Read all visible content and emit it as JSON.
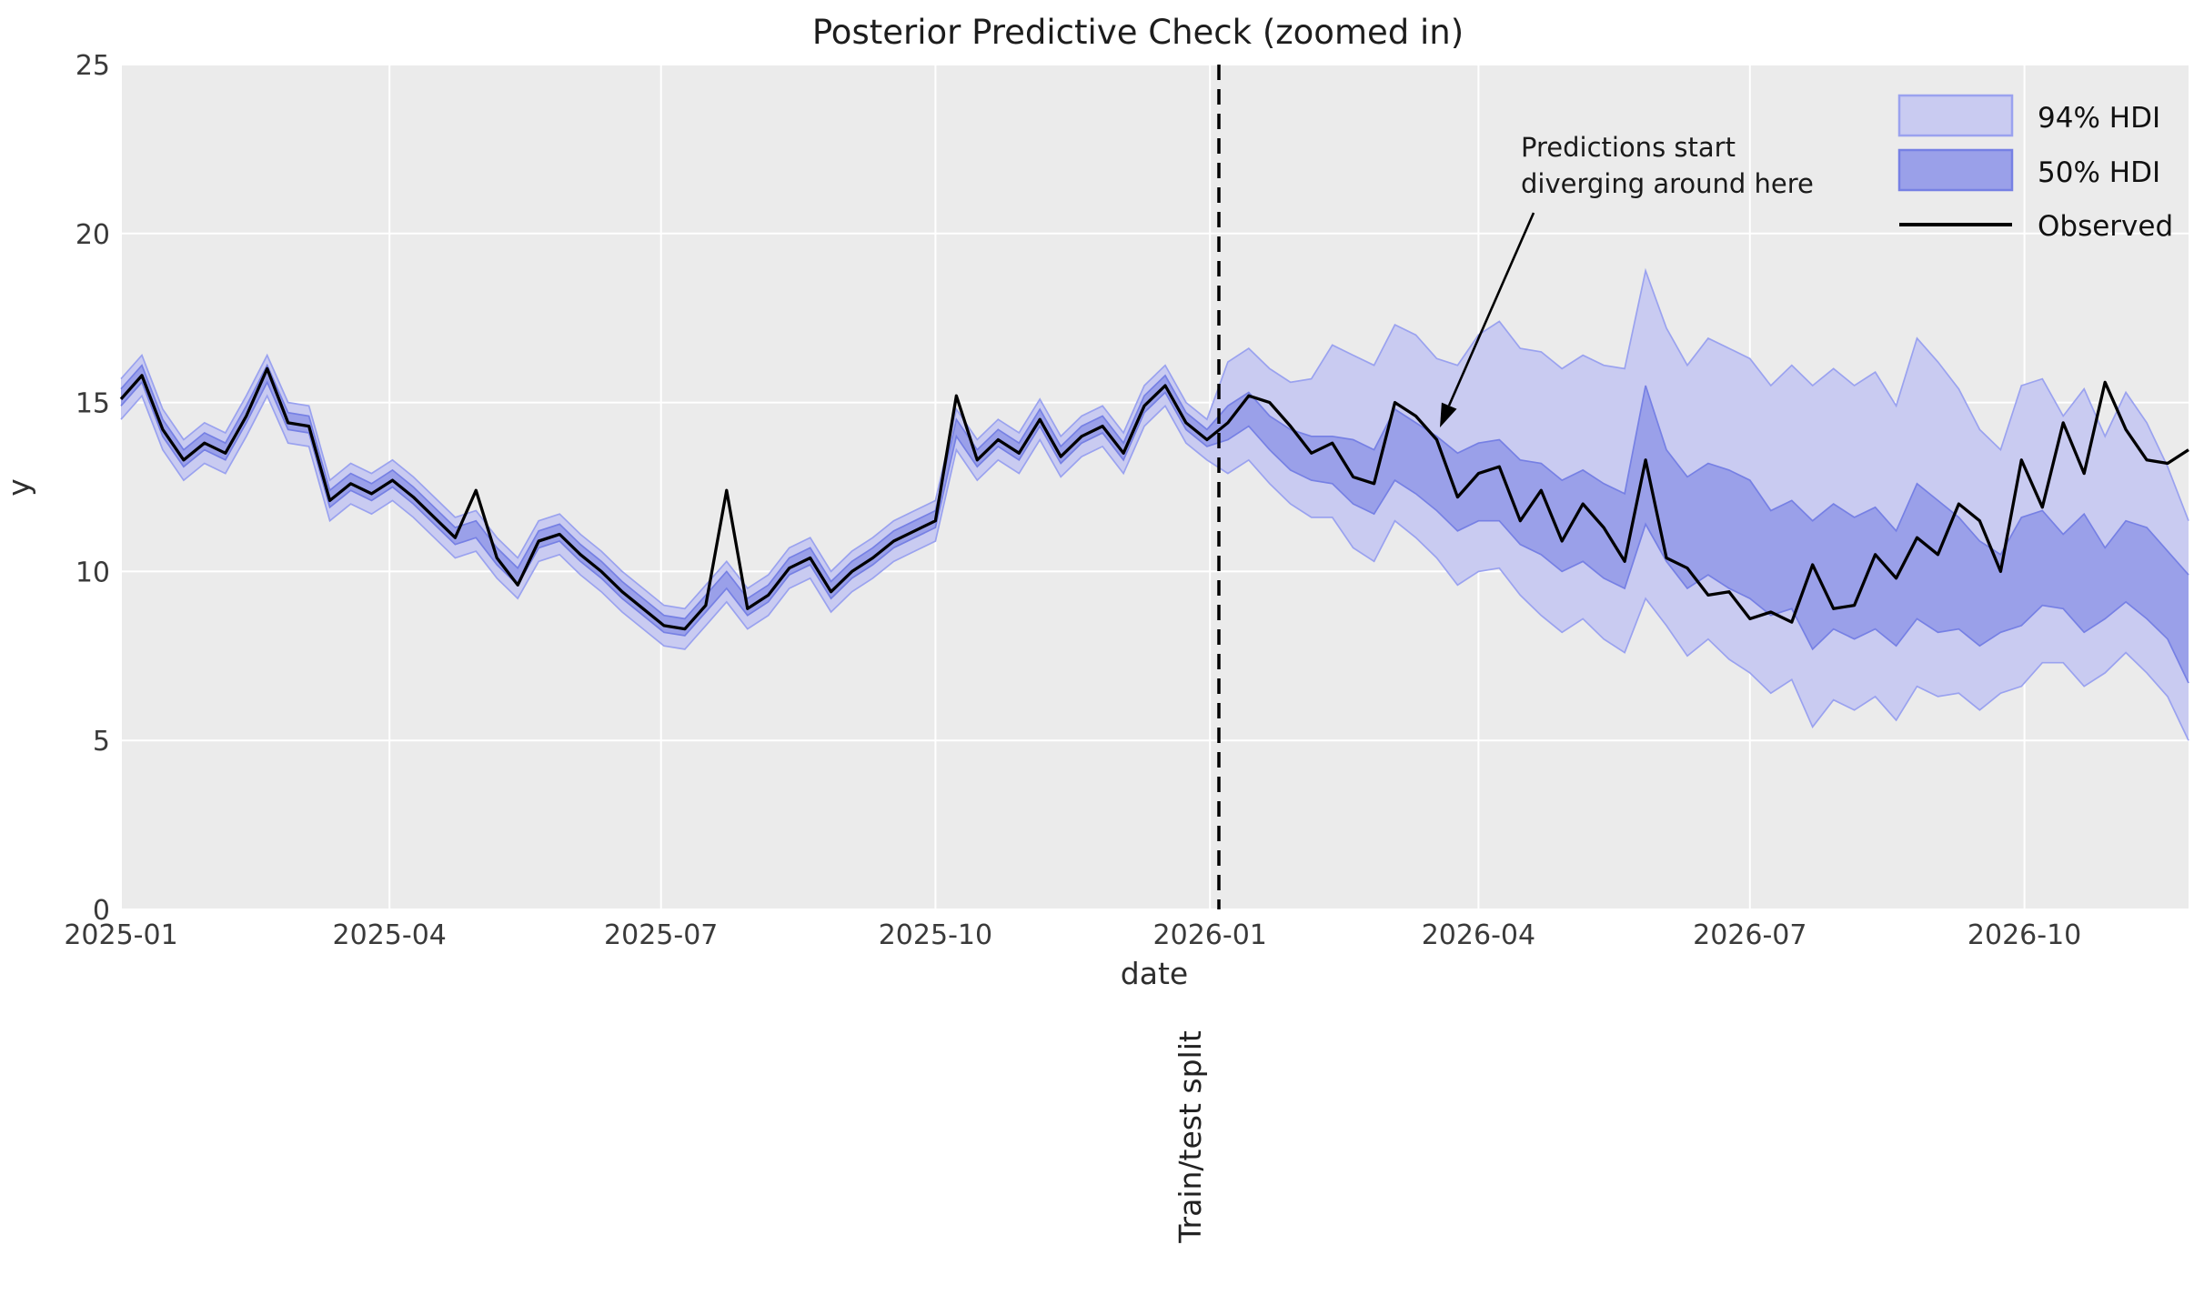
{
  "title": "Posterior Predictive Check (zoomed in)",
  "axes": {
    "xlabel": "date",
    "ylabel": "y",
    "x_tick_labels": [
      "2025-01",
      "2025-04",
      "2025-07",
      "2025-10",
      "2026-01",
      "2026-04",
      "2026-07",
      "2026-10"
    ],
    "y_tick_labels": [
      "0",
      "5",
      "10",
      "15",
      "20",
      "25"
    ]
  },
  "legend": {
    "items": [
      {
        "label": "94% HDI",
        "swatch": "band-light"
      },
      {
        "label": "50% HDI",
        "swatch": "band-dark"
      },
      {
        "label": "Observed",
        "swatch": "line"
      }
    ]
  },
  "annotation": {
    "line1": "Predictions start",
    "line2": "diverging around here"
  },
  "split": {
    "label": "Train/test split",
    "date": "2026-01-01"
  },
  "colors": {
    "figure_bg": "#ffffff",
    "axes_bg": "#ebebeb",
    "grid": "#ffffff",
    "hdi94_fill": "#c9cbf1",
    "hdi94_edge": "#9aa2ef",
    "hdi50_fill": "#9aa0e9",
    "hdi50_edge": "#7680e4",
    "observed": "#000000",
    "split_line": "#000000",
    "annotation_arrow": "#000000"
  },
  "chart_data": {
    "type": "line",
    "title": "Posterior Predictive Check (zoomed in)",
    "xlabel": "date",
    "ylabel": "y",
    "ylim": [
      0,
      25
    ],
    "grid": true,
    "legend_position": "upper right",
    "x_start_date": "2025-01-01",
    "x_freq_days": 7,
    "n_points": 100,
    "x_tick_labels": [
      "2025-01",
      "2025-04",
      "2025-07",
      "2025-10",
      "2026-01",
      "2026-04",
      "2026-07",
      "2026-10"
    ],
    "x_tick_day_offsets": [
      0,
      90,
      181,
      273,
      365,
      455,
      546,
      638
    ],
    "y_ticks": [
      0,
      5,
      10,
      15,
      20,
      25
    ],
    "train_test_split_date": "2026-01-01",
    "split_line_day_offset": 368,
    "observed": [
      15.1,
      15.8,
      14.2,
      13.3,
      13.8,
      13.5,
      14.6,
      16.0,
      14.4,
      14.3,
      12.1,
      12.6,
      12.3,
      12.7,
      12.2,
      11.6,
      11.0,
      12.4,
      10.4,
      9.6,
      10.9,
      11.1,
      10.5,
      10.0,
      9.4,
      8.9,
      8.4,
      8.3,
      9.0,
      12.4,
      8.9,
      9.3,
      10.1,
      10.4,
      9.4,
      10.0,
      10.4,
      10.9,
      11.2,
      11.5,
      15.2,
      13.3,
      13.9,
      13.5,
      14.5,
      13.4,
      14.0,
      14.3,
      13.5,
      14.9,
      15.5,
      14.4,
      13.9,
      14.4,
      15.2,
      15.0,
      14.3,
      13.5,
      13.8,
      12.8,
      12.6,
      15.0,
      14.6,
      13.9,
      12.2,
      12.9,
      13.1,
      11.5,
      12.4,
      10.9,
      12.0,
      11.3,
      10.3,
      13.3,
      10.4,
      10.1,
      9.3,
      9.4,
      8.6,
      8.8,
      8.5,
      10.2,
      8.9,
      9.0,
      10.5,
      9.8,
      11.0,
      10.5,
      12.0,
      11.5,
      10.0,
      13.3,
      11.9,
      14.4,
      12.9,
      15.6,
      14.2,
      13.3,
      13.2,
      13.6
    ],
    "hdi94": {
      "upper": [
        15.7,
        16.4,
        14.8,
        13.9,
        14.4,
        14.1,
        15.2,
        16.4,
        15.0,
        14.9,
        12.7,
        13.2,
        12.9,
        13.3,
        12.8,
        12.2,
        11.6,
        11.8,
        11.0,
        10.4,
        11.5,
        11.7,
        11.1,
        10.6,
        10.0,
        9.5,
        9.0,
        8.9,
        9.6,
        10.3,
        9.5,
        9.9,
        10.7,
        11.0,
        10.0,
        10.6,
        11.0,
        11.5,
        11.8,
        12.1,
        14.8,
        13.9,
        14.5,
        14.1,
        15.1,
        14.0,
        14.6,
        14.9,
        14.1,
        15.5,
        16.1,
        15.0,
        14.5,
        16.2,
        16.6,
        16.0,
        15.6,
        15.7,
        16.7,
        16.4,
        16.1,
        17.3,
        17.0,
        16.3,
        16.1,
        17.0,
        17.4,
        16.6,
        16.5,
        16.0,
        16.4,
        16.1,
        16.0,
        18.9,
        17.2,
        16.1,
        16.9,
        16.6,
        16.3,
        15.5,
        16.1,
        15.5,
        16.0,
        15.5,
        15.9,
        14.9,
        16.9,
        16.2,
        15.4,
        14.2,
        13.6,
        15.5,
        15.7,
        14.6,
        15.4,
        14.0,
        15.3,
        14.4,
        13.1,
        11.5
      ],
      "lower": [
        14.5,
        15.2,
        13.6,
        12.7,
        13.2,
        12.9,
        14.0,
        15.2,
        13.8,
        13.7,
        11.5,
        12.0,
        11.7,
        12.1,
        11.6,
        11.0,
        10.4,
        10.6,
        9.8,
        9.2,
        10.3,
        10.5,
        9.9,
        9.4,
        8.8,
        8.3,
        7.8,
        7.7,
        8.4,
        9.1,
        8.3,
        8.7,
        9.5,
        9.8,
        8.8,
        9.4,
        9.8,
        10.3,
        10.6,
        10.9,
        13.6,
        12.7,
        13.3,
        12.9,
        13.9,
        12.8,
        13.4,
        13.7,
        12.9,
        14.3,
        14.9,
        13.8,
        13.3,
        12.9,
        13.3,
        12.6,
        12.0,
        11.6,
        11.6,
        10.7,
        10.3,
        11.5,
        11.0,
        10.4,
        9.6,
        10.0,
        10.1,
        9.3,
        8.7,
        8.2,
        8.6,
        8.0,
        7.6,
        9.2,
        8.4,
        7.5,
        8.0,
        7.4,
        7.0,
        6.4,
        6.8,
        5.4,
        6.2,
        5.9,
        6.3,
        5.6,
        6.6,
        6.3,
        6.4,
        5.9,
        6.4,
        6.6,
        7.3,
        7.3,
        6.6,
        7.0,
        7.6,
        7.0,
        6.3,
        5.0
      ]
    },
    "hdi50": {
      "upper": [
        15.4,
        16.1,
        14.5,
        13.6,
        14.1,
        13.8,
        14.9,
        16.1,
        14.7,
        14.6,
        12.4,
        12.9,
        12.6,
        13.0,
        12.5,
        11.9,
        11.3,
        11.5,
        10.7,
        10.1,
        11.2,
        11.4,
        10.8,
        10.3,
        9.7,
        9.2,
        8.7,
        8.6,
        9.3,
        10.0,
        9.2,
        9.6,
        10.4,
        10.7,
        9.7,
        10.3,
        10.7,
        11.2,
        11.5,
        11.8,
        14.5,
        13.6,
        14.2,
        13.8,
        14.8,
        13.7,
        14.3,
        14.6,
        13.8,
        15.2,
        15.8,
        14.7,
        14.2,
        14.9,
        15.3,
        14.6,
        14.2,
        14.0,
        14.0,
        13.9,
        13.6,
        14.8,
        14.4,
        14.0,
        13.5,
        13.8,
        13.9,
        13.3,
        13.2,
        12.7,
        13.0,
        12.6,
        12.3,
        15.5,
        13.6,
        12.8,
        13.2,
        13.0,
        12.7,
        11.8,
        12.1,
        11.5,
        12.0,
        11.6,
        11.9,
        11.2,
        12.6,
        12.1,
        11.6,
        10.9,
        10.5,
        11.6,
        11.8,
        11.1,
        11.7,
        10.7,
        11.5,
        11.3,
        10.6,
        9.9
      ],
      "lower": [
        14.9,
        15.6,
        14.0,
        13.1,
        13.6,
        13.3,
        14.4,
        15.6,
        14.2,
        14.1,
        11.9,
        12.4,
        12.1,
        12.5,
        12.0,
        11.4,
        10.8,
        11.0,
        10.2,
        9.6,
        10.7,
        10.9,
        10.3,
        9.8,
        9.2,
        8.7,
        8.2,
        8.1,
        8.8,
        9.5,
        8.7,
        9.1,
        9.9,
        10.2,
        9.2,
        9.8,
        10.2,
        10.7,
        11.0,
        11.3,
        14.0,
        13.1,
        13.7,
        13.3,
        14.3,
        13.2,
        13.8,
        14.1,
        13.3,
        14.7,
        15.3,
        14.2,
        13.7,
        13.9,
        14.3,
        13.6,
        13.0,
        12.7,
        12.6,
        12.0,
        11.7,
        12.7,
        12.3,
        11.8,
        11.2,
        11.5,
        11.5,
        10.8,
        10.5,
        10.0,
        10.3,
        9.8,
        9.5,
        11.4,
        10.3,
        9.5,
        9.9,
        9.5,
        9.2,
        8.7,
        8.9,
        7.7,
        8.3,
        8.0,
        8.3,
        7.8,
        8.6,
        8.2,
        8.3,
        7.8,
        8.2,
        8.4,
        9.0,
        8.9,
        8.2,
        8.6,
        9.1,
        8.6,
        8.0,
        6.7
      ]
    },
    "series_legend": [
      "94% HDI",
      "50% HDI",
      "Observed"
    ]
  }
}
